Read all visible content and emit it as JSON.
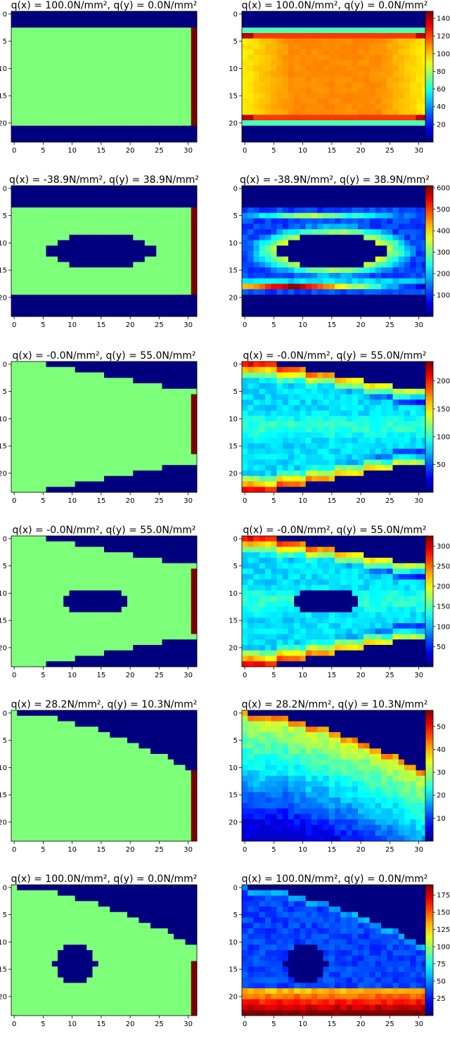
{
  "chart_data": [
    {
      "type": "heatmap",
      "panel": "design",
      "row": 0,
      "title": "q(x) = 100.0N/mm², q(y) = 0.0N/mm²",
      "x_ticks": [
        "0",
        "5",
        "10",
        "15",
        "20",
        "25",
        "30"
      ],
      "y_ticks": [
        "0",
        "5",
        "10",
        "15",
        "20"
      ],
      "grid_size": [
        32,
        24
      ],
      "material_rows": [
        3,
        20
      ],
      "hole": null,
      "load_rows": [
        3,
        20
      ],
      "boundary": "rect"
    },
    {
      "type": "heatmap",
      "panel": "stress",
      "row": 0,
      "title": "q(x) = 100.0N/mm², q(y) = 0.0N/mm²",
      "x_ticks": [
        "0",
        "5",
        "10",
        "15",
        "20",
        "25",
        "30"
      ],
      "y_ticks": [
        "0",
        "5",
        "10",
        "15",
        "20"
      ],
      "colorbar_ticks": [
        "20",
        "40",
        "60",
        "80",
        "100",
        "120",
        "140"
      ],
      "vmax": 148,
      "pattern": "plate"
    },
    {
      "type": "heatmap",
      "panel": "design",
      "row": 1,
      "title": "q(x) = -38.9N/mm², q(y) = 38.9N/mm²",
      "x_ticks": [
        "0",
        "5",
        "10",
        "15",
        "20",
        "25",
        "30"
      ],
      "y_ticks": [
        "0",
        "5",
        "10",
        "15",
        "20"
      ],
      "grid_size": [
        32,
        24
      ],
      "material_rows": [
        4,
        19
      ],
      "hole": {
        "cx": 15,
        "cy": 11.5,
        "rx": 9,
        "ry": 3
      },
      "load_rows": [
        4,
        19
      ],
      "boundary": "rect"
    },
    {
      "type": "heatmap",
      "panel": "stress",
      "row": 1,
      "title": "q(x) = -38.9N/mm², q(y) = 38.9N/mm²",
      "x_ticks": [
        "0",
        "5",
        "10",
        "15",
        "20",
        "25",
        "30"
      ],
      "y_ticks": [
        "0",
        "5",
        "10",
        "15",
        "20"
      ],
      "colorbar_ticks": [
        "100",
        "200",
        "300",
        "400",
        "500",
        "600"
      ],
      "vmax": 610,
      "pattern": "plate-hole"
    },
    {
      "type": "heatmap",
      "panel": "design",
      "row": 2,
      "title": "q(x) = -0.0N/mm², q(y) = 55.0N/mm²",
      "x_ticks": [
        "0",
        "5",
        "10",
        "15",
        "20",
        "25",
        "30"
      ],
      "y_ticks": [
        "0",
        "5",
        "10",
        "15",
        "20"
      ],
      "grid_size": [
        32,
        24
      ],
      "hole": null,
      "load_rows": [
        6,
        16
      ],
      "boundary": "taper"
    },
    {
      "type": "heatmap",
      "panel": "stress",
      "row": 2,
      "title": "q(x) = -0.0N/mm², q(y) = 55.0N/mm²",
      "x_ticks": [
        "0",
        "5",
        "10",
        "15",
        "20",
        "25",
        "30"
      ],
      "y_ticks": [
        "0",
        "5",
        "10",
        "15",
        "20"
      ],
      "colorbar_ticks": [
        "50",
        "100",
        "150",
        "200"
      ],
      "vmax": 235,
      "pattern": "taper"
    },
    {
      "type": "heatmap",
      "panel": "design",
      "row": 3,
      "title": "q(x) = -0.0N/mm², q(y) = 55.0N/mm²",
      "x_ticks": [
        "0",
        "5",
        "10",
        "15",
        "20",
        "25",
        "30"
      ],
      "y_ticks": [
        "0",
        "5",
        "10",
        "15",
        "20"
      ],
      "grid_size": [
        32,
        24
      ],
      "hole": {
        "cx": 14,
        "cy": 11.5,
        "rx": 6,
        "ry": 2
      },
      "load_rows": [
        6,
        17
      ],
      "boundary": "taper"
    },
    {
      "type": "heatmap",
      "panel": "stress",
      "row": 3,
      "title": "q(x) = -0.0N/mm², q(y) = 55.0N/mm²",
      "x_ticks": [
        "0",
        "5",
        "10",
        "15",
        "20",
        "25",
        "30"
      ],
      "y_ticks": [
        "0",
        "5",
        "10",
        "15",
        "20"
      ],
      "colorbar_ticks": [
        "50",
        "100",
        "150",
        "200",
        "250",
        "300"
      ],
      "vmax": 325,
      "pattern": "taper-hole"
    },
    {
      "type": "heatmap",
      "panel": "design",
      "row": 4,
      "title": "q(x) = 28.2N/mm², q(y) = 10.3N/mm²",
      "x_ticks": [
        "0",
        "5",
        "10",
        "15",
        "20",
        "25",
        "30"
      ],
      "y_ticks": [
        "0",
        "5",
        "10",
        "15",
        "20"
      ],
      "grid_size": [
        32,
        24
      ],
      "hole": null,
      "load_rows": [
        11,
        23
      ],
      "boundary": "arc"
    },
    {
      "type": "heatmap",
      "panel": "stress",
      "row": 4,
      "title": "q(x) = 28.2N/mm², q(y) = 10.3N/mm²",
      "x_ticks": [
        "0",
        "5",
        "10",
        "15",
        "20",
        "25",
        "30"
      ],
      "y_ticks": [
        "0",
        "5",
        "10",
        "15",
        "20"
      ],
      "colorbar_ticks": [
        "10",
        "20",
        "30",
        "40",
        "50"
      ],
      "vmax": 57,
      "pattern": "arc"
    },
    {
      "type": "heatmap",
      "panel": "design",
      "row": 5,
      "title": "q(x) = 100.0N/mm², q(y) = 0.0N/mm²",
      "x_ticks": [
        "0",
        "5",
        "10",
        "15",
        "20",
        "25",
        "30"
      ],
      "y_ticks": [
        "0",
        "5",
        "10",
        "15",
        "20"
      ],
      "grid_size": [
        32,
        24
      ],
      "hole": {
        "cx": 10.5,
        "cy": 14,
        "rx": 3.7,
        "ry": 3.2
      },
      "load_rows": [
        14,
        23
      ],
      "boundary": "arc"
    },
    {
      "type": "heatmap",
      "panel": "stress",
      "row": 5,
      "title": "q(x) = 100.0N/mm², q(y) = 0.0N/mm²",
      "x_ticks": [
        "0",
        "5",
        "10",
        "15",
        "20",
        "25",
        "30"
      ],
      "y_ticks": [
        "0",
        "5",
        "10",
        "15",
        "20"
      ],
      "colorbar_ticks": [
        "25",
        "50",
        "75",
        "100",
        "125",
        "150",
        "175"
      ],
      "vmax": 190,
      "pattern": "arc-hole"
    }
  ]
}
